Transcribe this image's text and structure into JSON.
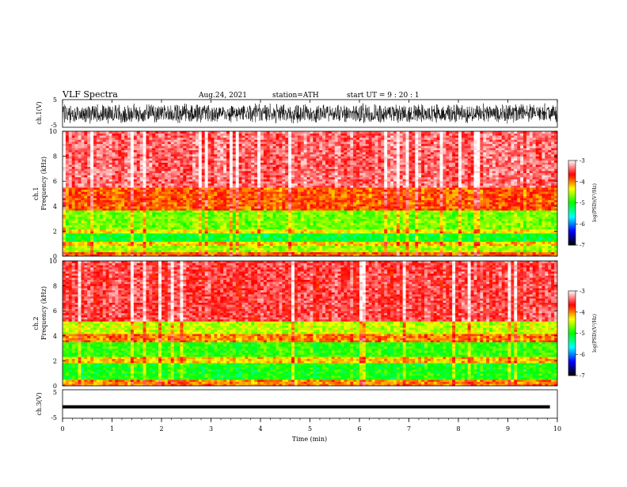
{
  "header": {
    "title": "VLF  Spectra",
    "date": "Aug.24, 2021",
    "station": "station=ATH",
    "start": "start  UT  =   9  : 20 : 1"
  },
  "chart_data": {
    "type": "heatmap",
    "x_axis": {
      "label": "Time  (min)",
      "range": [
        0,
        10
      ],
      "ticks": [
        "0",
        "1",
        "2",
        "3",
        "4",
        "5",
        "6",
        "7",
        "8",
        "9",
        "10"
      ]
    },
    "panels": [
      {
        "name": "ch1_waveform",
        "type": "line",
        "ylabel": "ch.1(V)",
        "ylim": [
          -5,
          5
        ],
        "yticks": [
          "5",
          "-5"
        ],
        "description_level": "dense noisy waveform spanning roughly -4 to 4 V"
      },
      {
        "name": "ch1_spectrogram",
        "type": "heatmap",
        "ylabel_top": "ch.1",
        "ylabel": "Frequency  (kHz)",
        "ylim": [
          0,
          10
        ],
        "yticks": [
          "0",
          "2",
          "4",
          "6",
          "8",
          "10"
        ],
        "band_levels": [
          {
            "f_low": 0.0,
            "f_high": 0.3,
            "log_psd": -3.9
          },
          {
            "f_low": 0.3,
            "f_high": 0.8,
            "log_psd": -4.6
          },
          {
            "f_low": 0.8,
            "f_high": 1.1,
            "log_psd": -4.2
          },
          {
            "f_low": 1.1,
            "f_high": 1.8,
            "log_psd": -5.1
          },
          {
            "f_low": 1.8,
            "f_high": 2.2,
            "log_psd": -4.3
          },
          {
            "f_low": 2.2,
            "f_high": 3.6,
            "log_psd": -4.7
          },
          {
            "f_low": 3.6,
            "f_high": 5.5,
            "log_psd": -3.9
          },
          {
            "f_low": 5.5,
            "f_high": 10.0,
            "log_psd": -3.4
          }
        ]
      },
      {
        "name": "ch2_spectrogram",
        "type": "heatmap",
        "ylabel_top": "ch.2",
        "ylabel": "Frequency  (kHz)",
        "ylim": [
          0,
          10
        ],
        "yticks": [
          "0",
          "2",
          "4",
          "6",
          "8",
          "10"
        ],
        "band_levels": [
          {
            "f_low": 0.0,
            "f_high": 0.5,
            "log_psd": -4.0
          },
          {
            "f_low": 0.5,
            "f_high": 1.8,
            "log_psd": -5.0
          },
          {
            "f_low": 1.8,
            "f_high": 2.3,
            "log_psd": -4.2
          },
          {
            "f_low": 2.3,
            "f_high": 3.5,
            "log_psd": -4.9
          },
          {
            "f_low": 3.5,
            "f_high": 4.2,
            "log_psd": -4.0
          },
          {
            "f_low": 4.2,
            "f_high": 5.2,
            "log_psd": -4.5
          },
          {
            "f_low": 5.2,
            "f_high": 10.0,
            "log_psd": -3.5
          }
        ]
      },
      {
        "name": "ch3_waveform",
        "type": "line",
        "ylabel": "ch.3(V)",
        "ylim": [
          -5,
          5
        ],
        "yticks": [
          "5",
          "-5"
        ],
        "description_level": "nearly flat trace near -1 V"
      }
    ],
    "colorbar": {
      "label": "log(PSD)(V²/Hz)",
      "range": [
        -7,
        -3
      ],
      "ticks": [
        "-3",
        "-4",
        "-5",
        "-6",
        "-7"
      ],
      "colors": [
        "#000000",
        "#0000ff",
        "#00ffff",
        "#00ff00",
        "#ffff00",
        "#ff0000",
        "#ffffff"
      ]
    },
    "ch1_wave_amplitude": 3.8,
    "ch3_level": -1.0
  }
}
